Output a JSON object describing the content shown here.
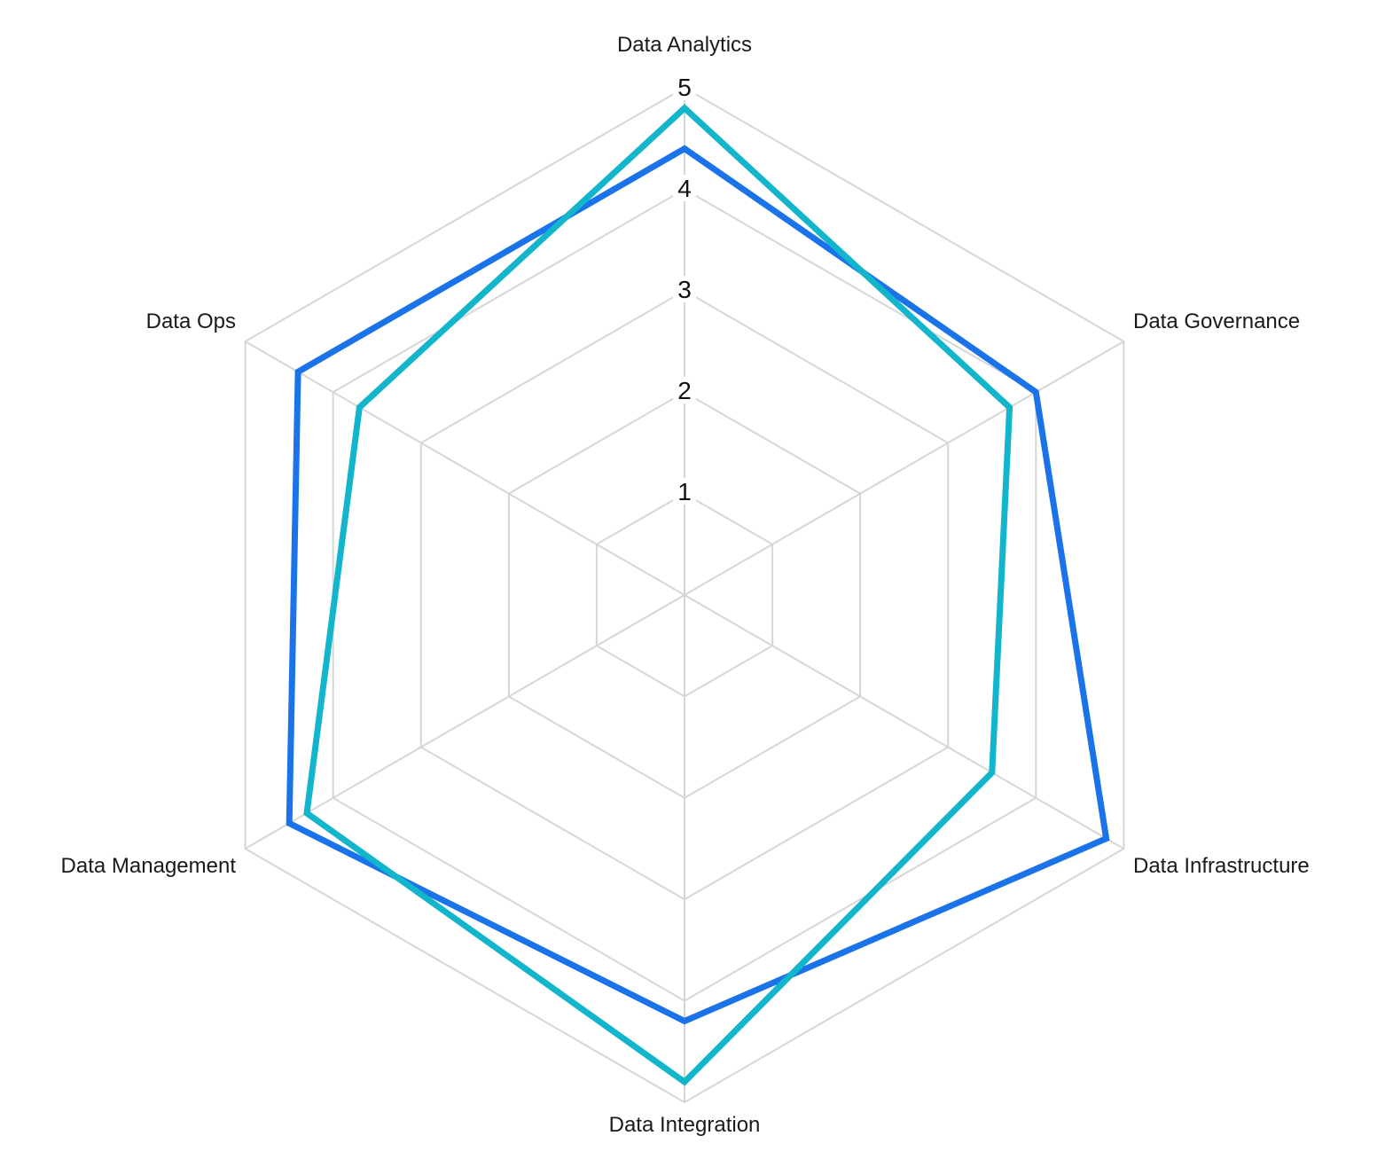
{
  "chart_data": {
    "type": "radar",
    "title": "",
    "categories": [
      "Data Analytics",
      "Data Governance",
      "Data Infrastructure",
      "Data Integration",
      "Data Management",
      "Data Ops"
    ],
    "rlim": [
      0,
      5
    ],
    "ticks": [
      "1",
      "2",
      "3",
      "4",
      "5"
    ],
    "grid": true,
    "legend": "none",
    "series": [
      {
        "color": "#1a73e8",
        "values": [
          4.4,
          4.0,
          4.8,
          4.2,
          4.5,
          4.4
        ]
      },
      {
        "color": "#12b5cb",
        "values": [
          4.8,
          3.7,
          3.5,
          4.8,
          4.3,
          3.7
        ]
      }
    ]
  }
}
